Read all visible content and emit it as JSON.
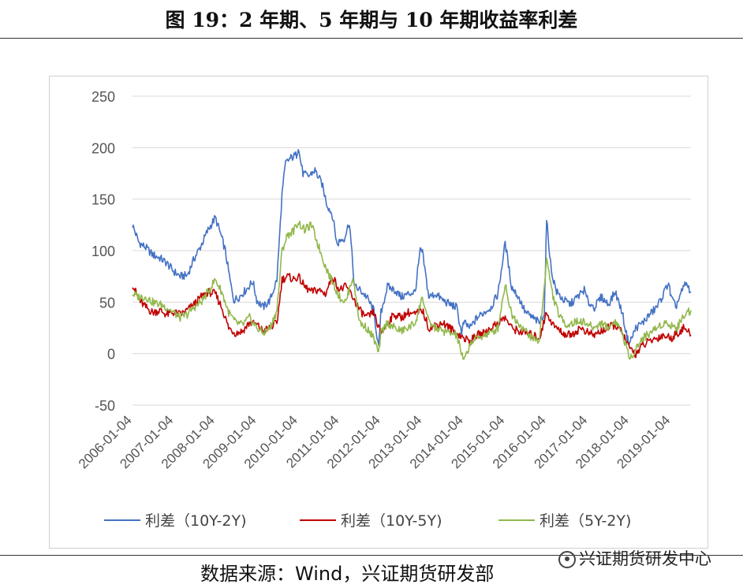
{
  "header": {
    "title": "图 19：2 年期、5 年期与 10 年期收益率利差"
  },
  "footer": {
    "source": "数据来源：Wind，兴证期货研发部",
    "watermark": "兴证期货研发中心",
    "watermark_icon": "wechat-icon"
  },
  "chart_data": {
    "type": "line",
    "title": "",
    "xlabel": "",
    "ylabel": "",
    "ylim": [
      -50,
      250
    ],
    "yticks": [
      -50,
      0,
      50,
      100,
      150,
      200,
      250
    ],
    "xlim": [
      "2006-01-04",
      "2019-06-30"
    ],
    "xticks": [
      "2006-01-04",
      "2007-01-04",
      "2008-01-04",
      "2009-01-04",
      "2010-01-04",
      "2011-01-04",
      "2012-01-04",
      "2013-01-04",
      "2014-01-04",
      "2015-01-04",
      "2016-01-04",
      "2017-01-04",
      "2018-01-04",
      "2019-01-04"
    ],
    "grid": "horizontal",
    "legend_position": "bottom",
    "series": [
      {
        "name": "利差（10Y-2Y)",
        "color": "#4472C4",
        "points": [
          [
            "2006-01-04",
            125
          ],
          [
            "2006-03-01",
            108
          ],
          [
            "2006-05-01",
            103
          ],
          [
            "2006-07-01",
            96
          ],
          [
            "2006-09-01",
            93
          ],
          [
            "2006-11-01",
            88
          ],
          [
            "2007-01-01",
            80
          ],
          [
            "2007-03-01",
            75
          ],
          [
            "2007-05-01",
            76
          ],
          [
            "2007-07-01",
            92
          ],
          [
            "2007-09-01",
            105
          ],
          [
            "2007-11-01",
            120
          ],
          [
            "2008-01-04",
            132
          ],
          [
            "2008-02-15",
            118
          ],
          [
            "2008-04-01",
            100
          ],
          [
            "2008-05-15",
            70
          ],
          [
            "2008-06-15",
            52
          ],
          [
            "2008-08-01",
            55
          ],
          [
            "2008-10-01",
            62
          ],
          [
            "2008-12-01",
            70
          ],
          [
            "2009-01-04",
            52
          ],
          [
            "2009-03-01",
            45
          ],
          [
            "2009-05-01",
            52
          ],
          [
            "2009-07-01",
            72
          ],
          [
            "2009-08-15",
            155
          ],
          [
            "2009-09-15",
            185
          ],
          [
            "2009-11-01",
            190
          ],
          [
            "2009-12-20",
            193
          ],
          [
            "2010-01-04",
            200
          ],
          [
            "2010-02-15",
            175
          ],
          [
            "2010-04-01",
            172
          ],
          [
            "2010-06-01",
            178
          ],
          [
            "2010-08-01",
            165
          ],
          [
            "2010-09-15",
            145
          ],
          [
            "2010-11-01",
            135
          ],
          [
            "2010-12-15",
            105
          ],
          [
            "2011-01-04",
            110
          ],
          [
            "2011-02-15",
            112
          ],
          [
            "2011-04-01",
            128
          ],
          [
            "2011-05-15",
            65
          ],
          [
            "2011-07-01",
            62
          ],
          [
            "2011-09-01",
            55
          ],
          [
            "2011-11-01",
            42
          ],
          [
            "2011-12-15",
            5
          ],
          [
            "2012-01-04",
            40
          ],
          [
            "2012-03-01",
            65
          ],
          [
            "2012-05-01",
            62
          ],
          [
            "2012-07-01",
            55
          ],
          [
            "2012-09-01",
            58
          ],
          [
            "2012-11-01",
            60
          ],
          [
            "2012-12-15",
            100
          ],
          [
            "2013-01-04",
            98
          ],
          [
            "2013-03-01",
            55
          ],
          [
            "2013-05-01",
            58
          ],
          [
            "2013-07-01",
            52
          ],
          [
            "2013-09-01",
            48
          ],
          [
            "2013-11-01",
            45
          ],
          [
            "2013-12-15",
            20
          ],
          [
            "2014-01-04",
            30
          ],
          [
            "2014-03-01",
            25
          ],
          [
            "2014-05-01",
            35
          ],
          [
            "2014-07-01",
            40
          ],
          [
            "2014-09-01",
            45
          ],
          [
            "2014-11-01",
            58
          ],
          [
            "2015-01-04",
            108
          ],
          [
            "2015-03-01",
            65
          ],
          [
            "2015-05-01",
            55
          ],
          [
            "2015-07-01",
            40
          ],
          [
            "2015-09-01",
            35
          ],
          [
            "2015-11-01",
            30
          ],
          [
            "2015-12-15",
            40
          ],
          [
            "2016-01-04",
            130
          ],
          [
            "2016-02-15",
            80
          ],
          [
            "2016-04-01",
            60
          ],
          [
            "2016-06-01",
            52
          ],
          [
            "2016-08-01",
            48
          ],
          [
            "2016-10-01",
            55
          ],
          [
            "2016-12-01",
            62
          ],
          [
            "2017-01-04",
            50
          ],
          [
            "2017-03-01",
            45
          ],
          [
            "2017-05-01",
            55
          ],
          [
            "2017-07-01",
            48
          ],
          [
            "2017-09-01",
            60
          ],
          [
            "2017-11-01",
            40
          ],
          [
            "2017-12-15",
            15
          ],
          [
            "2018-01-04",
            10
          ],
          [
            "2018-03-01",
            25
          ],
          [
            "2018-05-01",
            30
          ],
          [
            "2018-07-01",
            38
          ],
          [
            "2018-09-01",
            45
          ],
          [
            "2018-11-01",
            58
          ],
          [
            "2018-12-15",
            70
          ],
          [
            "2019-01-04",
            55
          ],
          [
            "2019-02-15",
            45
          ],
          [
            "2019-04-01",
            58
          ],
          [
            "2019-05-15",
            68
          ],
          [
            "2019-06-30",
            60
          ]
        ]
      },
      {
        "name": "利差（10Y-5Y)",
        "color": "#C00000",
        "points": [
          [
            "2006-01-04",
            68
          ],
          [
            "2006-03-01",
            52
          ],
          [
            "2006-05-01",
            45
          ],
          [
            "2006-07-01",
            40
          ],
          [
            "2006-09-01",
            42
          ],
          [
            "2006-11-01",
            38
          ],
          [
            "2007-01-01",
            40
          ],
          [
            "2007-03-01",
            38
          ],
          [
            "2007-05-01",
            42
          ],
          [
            "2007-07-01",
            48
          ],
          [
            "2007-09-01",
            55
          ],
          [
            "2007-11-01",
            60
          ],
          [
            "2008-01-04",
            58
          ],
          [
            "2008-03-01",
            45
          ],
          [
            "2008-05-01",
            25
          ],
          [
            "2008-07-01",
            20
          ],
          [
            "2008-09-01",
            22
          ],
          [
            "2008-11-01",
            30
          ],
          [
            "2009-01-04",
            28
          ],
          [
            "2009-03-01",
            22
          ],
          [
            "2009-05-01",
            25
          ],
          [
            "2009-07-01",
            30
          ],
          [
            "2009-08-15",
            72
          ],
          [
            "2009-10-01",
            75
          ],
          [
            "2009-12-01",
            72
          ],
          [
            "2010-01-04",
            75
          ],
          [
            "2010-03-01",
            65
          ],
          [
            "2010-05-01",
            60
          ],
          [
            "2010-07-01",
            62
          ],
          [
            "2010-09-01",
            58
          ],
          [
            "2010-11-01",
            75
          ],
          [
            "2011-01-04",
            62
          ],
          [
            "2011-03-01",
            65
          ],
          [
            "2011-05-01",
            55
          ],
          [
            "2011-07-01",
            42
          ],
          [
            "2011-09-01",
            35
          ],
          [
            "2011-11-01",
            40
          ],
          [
            "2011-12-15",
            25
          ],
          [
            "2012-01-04",
            20
          ],
          [
            "2012-03-01",
            30
          ],
          [
            "2012-05-01",
            38
          ],
          [
            "2012-07-01",
            35
          ],
          [
            "2012-09-01",
            40
          ],
          [
            "2012-11-01",
            38
          ],
          [
            "2013-01-04",
            42
          ],
          [
            "2013-03-01",
            25
          ],
          [
            "2013-05-01",
            28
          ],
          [
            "2013-07-01",
            30
          ],
          [
            "2013-09-01",
            25
          ],
          [
            "2013-11-01",
            20
          ],
          [
            "2014-01-04",
            15
          ],
          [
            "2014-03-01",
            12
          ],
          [
            "2014-05-01",
            18
          ],
          [
            "2014-07-01",
            20
          ],
          [
            "2014-09-01",
            25
          ],
          [
            "2014-11-01",
            30
          ],
          [
            "2015-01-04",
            35
          ],
          [
            "2015-03-01",
            25
          ],
          [
            "2015-05-01",
            22
          ],
          [
            "2015-07-01",
            20
          ],
          [
            "2015-09-01",
            18
          ],
          [
            "2015-11-01",
            15
          ],
          [
            "2016-01-04",
            40
          ],
          [
            "2016-03-01",
            28
          ],
          [
            "2016-05-01",
            22
          ],
          [
            "2016-07-01",
            18
          ],
          [
            "2016-09-01",
            20
          ],
          [
            "2016-11-01",
            25
          ],
          [
            "2017-01-04",
            20
          ],
          [
            "2017-03-01",
            18
          ],
          [
            "2017-05-01",
            22
          ],
          [
            "2017-07-01",
            25
          ],
          [
            "2017-09-01",
            28
          ],
          [
            "2017-11-01",
            20
          ],
          [
            "2018-01-04",
            5
          ],
          [
            "2018-03-01",
            0
          ],
          [
            "2018-05-01",
            8
          ],
          [
            "2018-07-01",
            12
          ],
          [
            "2018-09-01",
            15
          ],
          [
            "2018-11-01",
            18
          ],
          [
            "2019-01-04",
            15
          ],
          [
            "2019-03-01",
            20
          ],
          [
            "2019-05-01",
            25
          ],
          [
            "2019-06-30",
            18
          ]
        ]
      },
      {
        "name": "利差（5Y-2Y)",
        "color": "#92B84C",
        "points": [
          [
            "2006-01-04",
            58
          ],
          [
            "2006-03-01",
            55
          ],
          [
            "2006-05-01",
            55
          ],
          [
            "2006-07-01",
            50
          ],
          [
            "2006-09-01",
            48
          ],
          [
            "2006-11-01",
            45
          ],
          [
            "2007-01-01",
            40
          ],
          [
            "2007-03-01",
            35
          ],
          [
            "2007-05-01",
            38
          ],
          [
            "2007-07-01",
            45
          ],
          [
            "2007-09-01",
            50
          ],
          [
            "2007-11-01",
            60
          ],
          [
            "2008-01-04",
            72
          ],
          [
            "2008-03-01",
            60
          ],
          [
            "2008-05-01",
            40
          ],
          [
            "2008-07-01",
            30
          ],
          [
            "2008-09-01",
            28
          ],
          [
            "2008-11-01",
            35
          ],
          [
            "2009-01-04",
            25
          ],
          [
            "2009-03-01",
            20
          ],
          [
            "2009-05-01",
            25
          ],
          [
            "2009-07-01",
            42
          ],
          [
            "2009-08-15",
            100
          ],
          [
            "2009-10-01",
            115
          ],
          [
            "2009-12-01",
            120
          ],
          [
            "2010-01-04",
            128
          ],
          [
            "2010-03-01",
            120
          ],
          [
            "2010-05-01",
            125
          ],
          [
            "2010-07-01",
            105
          ],
          [
            "2010-09-01",
            85
          ],
          [
            "2010-11-01",
            70
          ],
          [
            "2011-01-04",
            55
          ],
          [
            "2011-03-01",
            50
          ],
          [
            "2011-05-01",
            75
          ],
          [
            "2011-07-01",
            30
          ],
          [
            "2011-09-01",
            25
          ],
          [
            "2011-11-01",
            15
          ],
          [
            "2011-12-15",
            0
          ],
          [
            "2012-01-04",
            20
          ],
          [
            "2012-03-01",
            30
          ],
          [
            "2012-05-01",
            25
          ],
          [
            "2012-07-01",
            22
          ],
          [
            "2012-09-01",
            25
          ],
          [
            "2012-11-01",
            30
          ],
          [
            "2013-01-04",
            55
          ],
          [
            "2013-03-01",
            30
          ],
          [
            "2013-05-01",
            25
          ],
          [
            "2013-07-01",
            22
          ],
          [
            "2013-09-01",
            20
          ],
          [
            "2013-11-01",
            18
          ],
          [
            "2014-01-04",
            -8
          ],
          [
            "2014-03-01",
            10
          ],
          [
            "2014-05-01",
            15
          ],
          [
            "2014-07-01",
            18
          ],
          [
            "2014-09-01",
            20
          ],
          [
            "2014-11-01",
            25
          ],
          [
            "2015-01-04",
            68
          ],
          [
            "2015-03-01",
            38
          ],
          [
            "2015-05-01",
            30
          ],
          [
            "2015-07-01",
            22
          ],
          [
            "2015-09-01",
            15
          ],
          [
            "2015-11-01",
            12
          ],
          [
            "2016-01-04",
            92
          ],
          [
            "2016-03-01",
            55
          ],
          [
            "2016-05-01",
            35
          ],
          [
            "2016-07-01",
            28
          ],
          [
            "2016-09-01",
            30
          ],
          [
            "2016-11-01",
            32
          ],
          [
            "2017-01-04",
            28
          ],
          [
            "2017-03-01",
            25
          ],
          [
            "2017-05-01",
            30
          ],
          [
            "2017-07-01",
            25
          ],
          [
            "2017-09-01",
            32
          ],
          [
            "2017-11-01",
            20
          ],
          [
            "2018-01-04",
            -5
          ],
          [
            "2018-03-01",
            5
          ],
          [
            "2018-05-01",
            15
          ],
          [
            "2018-07-01",
            20
          ],
          [
            "2018-09-01",
            25
          ],
          [
            "2018-11-01",
            30
          ],
          [
            "2019-01-04",
            28
          ],
          [
            "2019-03-01",
            25
          ],
          [
            "2019-05-01",
            38
          ],
          [
            "2019-06-30",
            42
          ]
        ]
      }
    ]
  }
}
